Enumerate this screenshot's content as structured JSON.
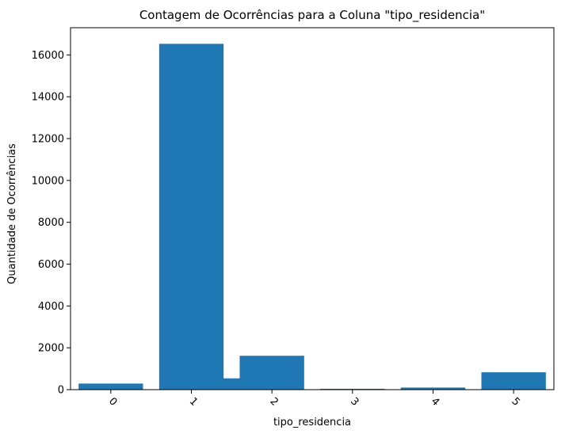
{
  "chart_data": {
    "type": "bar",
    "title": "Contagem de Ocorrências para a Coluna \"tipo_residencia\"",
    "xlabel": "tipo_residencia",
    "ylabel": "Quantidade de Ocorrências",
    "ylim": [
      0,
      17300
    ],
    "xlim": [
      -0.5,
      5.5
    ],
    "yticks": [
      0,
      2000,
      4000,
      6000,
      8000,
      10000,
      12000,
      14000,
      16000
    ],
    "ytick_labels": [
      "0",
      "2000",
      "4000",
      "6000",
      "8000",
      "10000",
      "12000",
      "14000",
      "16000"
    ],
    "xtick_values": [
      0,
      1,
      2,
      3,
      4,
      5
    ],
    "xtick_labels": [
      "0",
      "1",
      "2",
      "3",
      "4",
      "5"
    ],
    "xtick_rotation_deg": 45,
    "bar_color": "#1f77b4",
    "grid": false,
    "legend": "none",
    "bars": [
      {
        "x": 0,
        "value": 290
      },
      {
        "x": 1,
        "value": 16530
      },
      {
        "x": 1.5,
        "value": 540
      },
      {
        "x": 2,
        "value": 1620
      },
      {
        "x": 3,
        "value": 40
      },
      {
        "x": 4,
        "value": 100
      },
      {
        "x": 5,
        "value": 830
      }
    ]
  }
}
